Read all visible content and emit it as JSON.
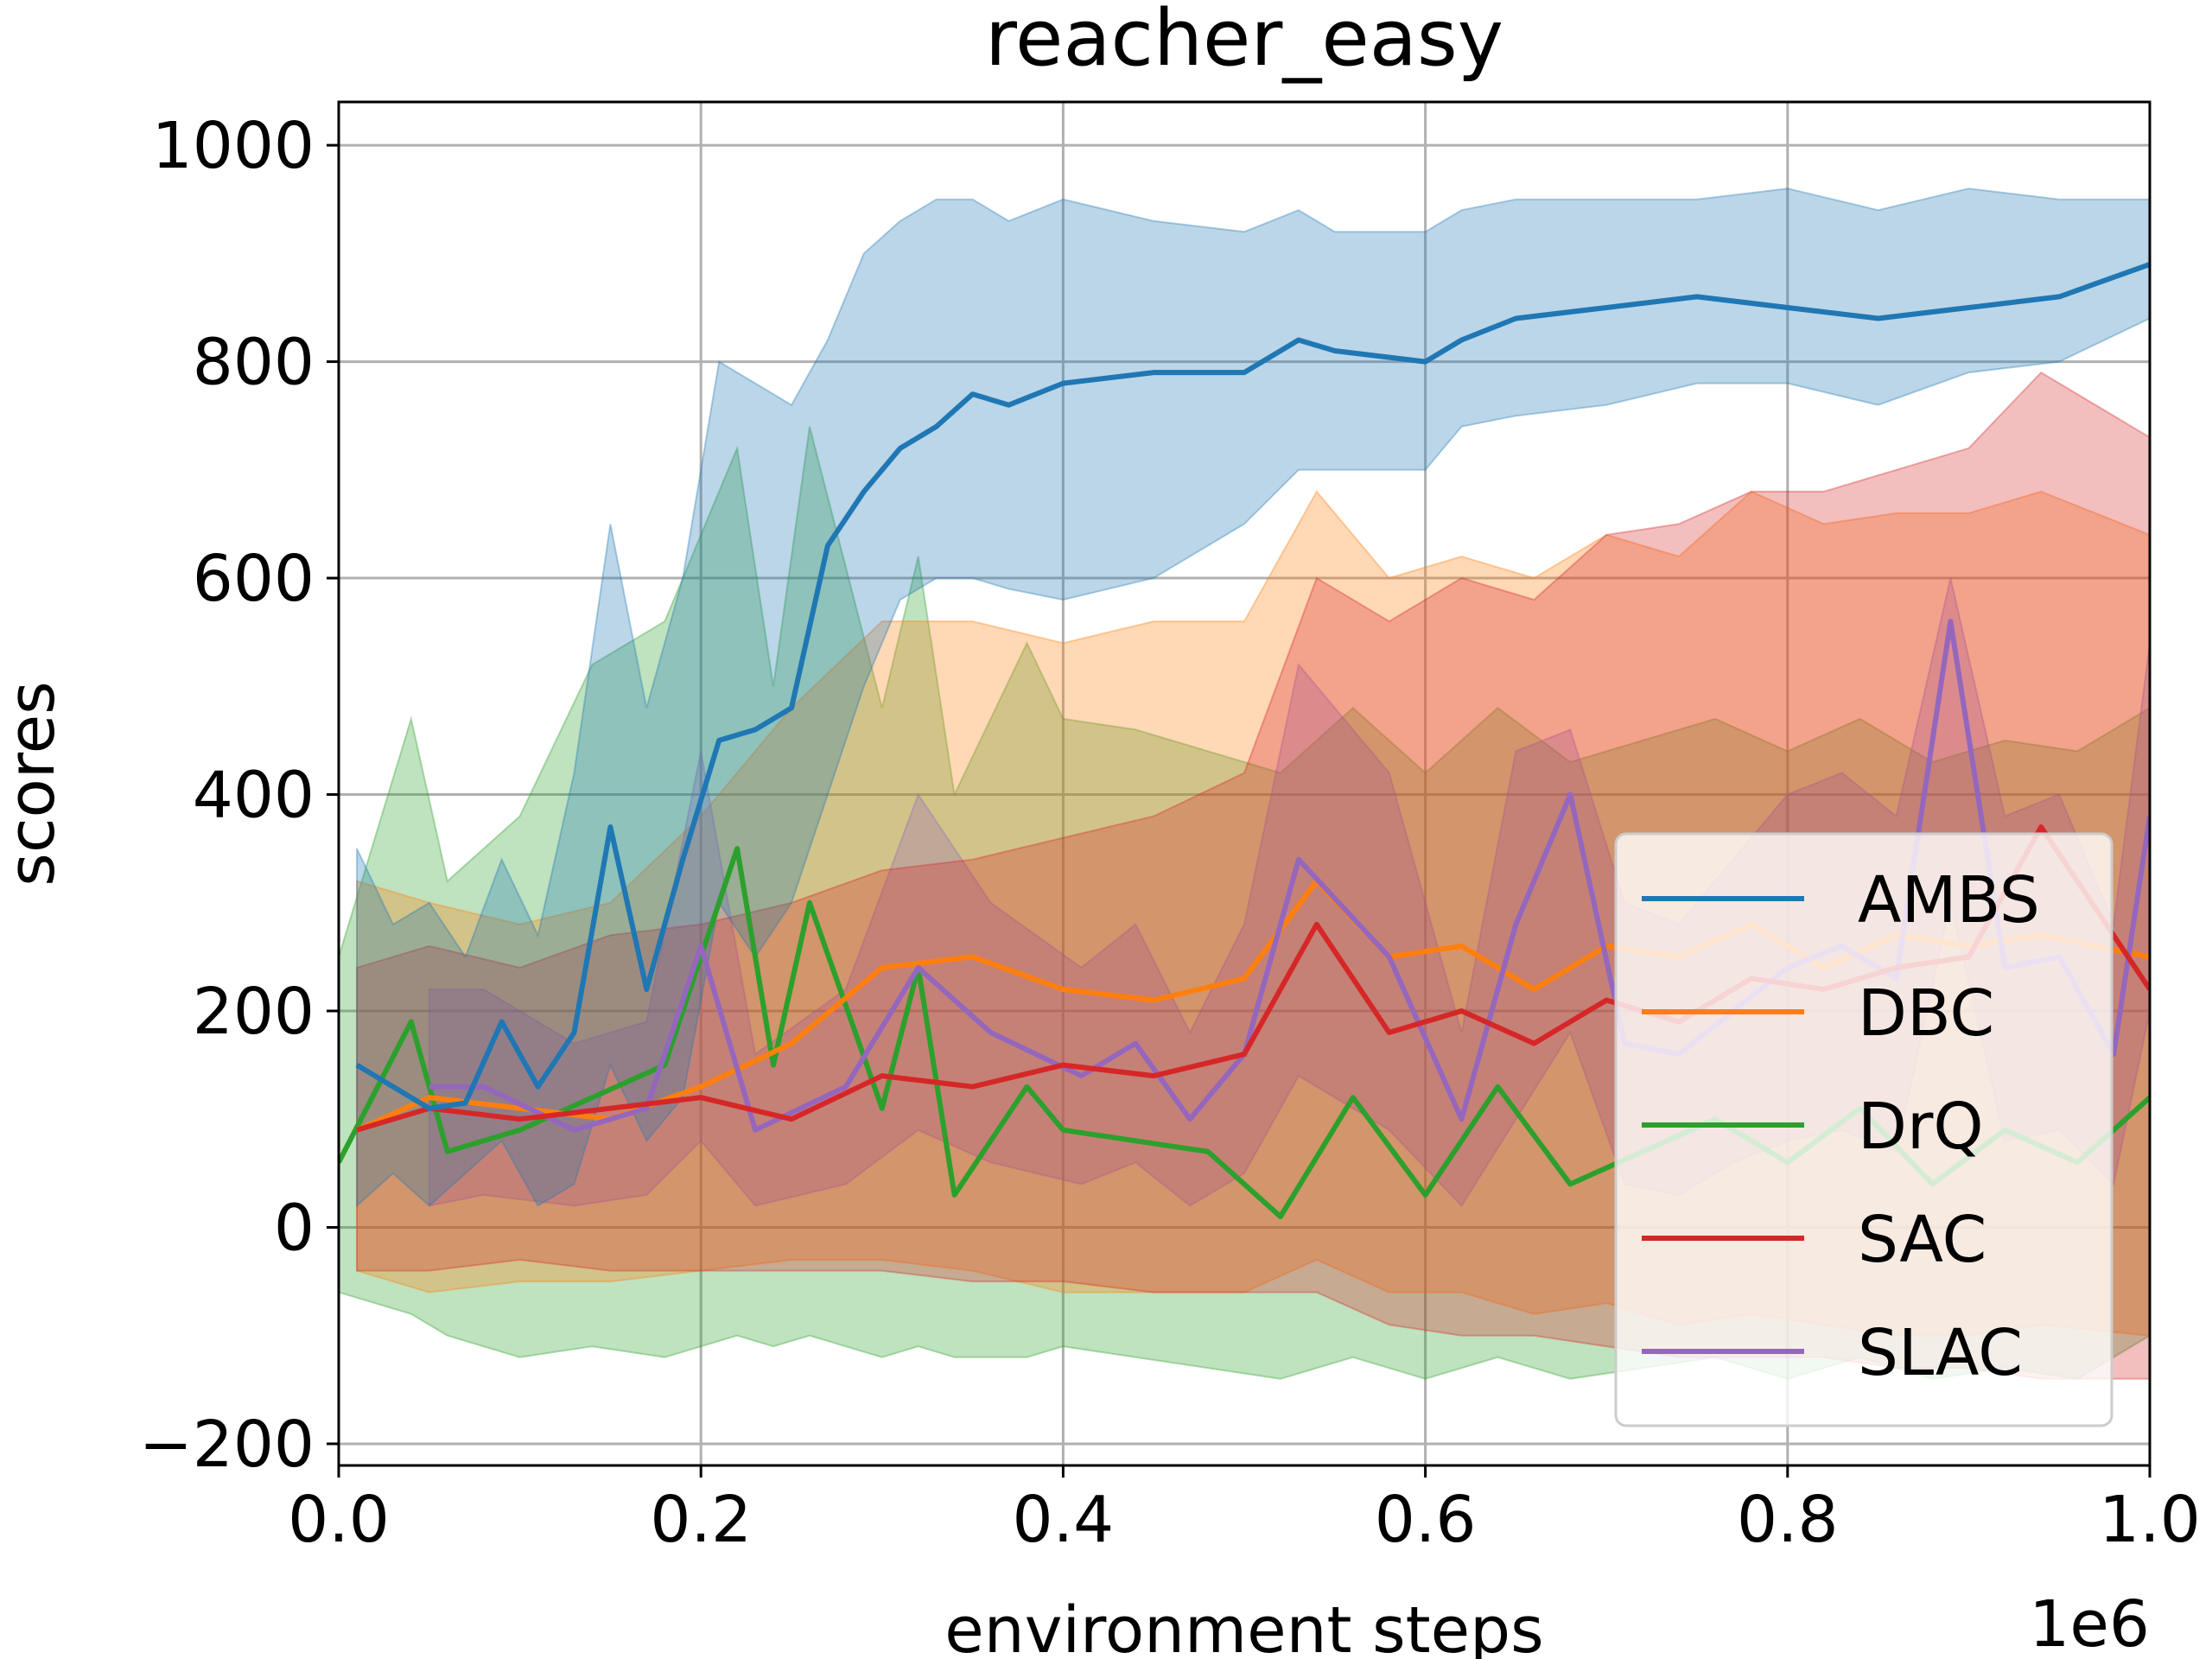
{
  "chart_data": {
    "type": "line",
    "title": "reacher_easy",
    "xlabel": "environment steps",
    "ylabel": "scores",
    "x_offset_label": "1e6",
    "xlim": [
      0.0,
      1.0
    ],
    "ylim": [
      -220,
      1040
    ],
    "x_ticks": [
      0.0,
      0.2,
      0.4,
      0.6,
      0.8,
      1.0
    ],
    "x_tick_labels": [
      "0.0",
      "0.2",
      "0.4",
      "0.6",
      "0.8",
      "1.0"
    ],
    "y_ticks": [
      -200,
      0,
      200,
      400,
      600,
      800,
      1000
    ],
    "y_tick_labels": [
      "−200",
      "0",
      "200",
      "400",
      "600",
      "800",
      "1000"
    ],
    "grid": true,
    "legend_position": "lower-right",
    "colors": {
      "AMBS": "#1f77b4",
      "DBC": "#ff7f0e",
      "DrQ": "#2ca02c",
      "SAC": "#d62728",
      "SLAC": "#9467bd"
    },
    "series": [
      {
        "name": "AMBS",
        "x": [
          0.01,
          0.03,
          0.05,
          0.07,
          0.09,
          0.11,
          0.13,
          0.15,
          0.17,
          0.19,
          0.21,
          0.23,
          0.25,
          0.27,
          0.29,
          0.31,
          0.33,
          0.35,
          0.37,
          0.4,
          0.45,
          0.5,
          0.53,
          0.55,
          0.6,
          0.62,
          0.65,
          0.7,
          0.75,
          0.8,
          0.85,
          0.9,
          0.95,
          1.0
        ],
        "y": [
          150,
          130,
          110,
          115,
          190,
          130,
          180,
          370,
          220,
          340,
          450,
          460,
          480,
          630,
          680,
          720,
          740,
          770,
          760,
          780,
          790,
          790,
          820,
          810,
          800,
          820,
          840,
          850,
          860,
          850,
          840,
          850,
          860,
          890
        ],
        "lower": [
          20,
          50,
          20,
          50,
          80,
          20,
          40,
          150,
          80,
          120,
          300,
          250,
          300,
          400,
          500,
          580,
          600,
          600,
          590,
          580,
          600,
          650,
          700,
          700,
          700,
          740,
          750,
          760,
          780,
          780,
          760,
          790,
          800,
          840
        ],
        "upper": [
          350,
          280,
          300,
          250,
          340,
          270,
          420,
          650,
          480,
          600,
          800,
          780,
          760,
          820,
          900,
          930,
          950,
          950,
          930,
          950,
          930,
          920,
          940,
          920,
          920,
          940,
          950,
          950,
          950,
          960,
          940,
          960,
          950,
          950
        ]
      },
      {
        "name": "DBC",
        "x": [
          0.01,
          0.05,
          0.1,
          0.15,
          0.2,
          0.25,
          0.3,
          0.35,
          0.4,
          0.45,
          0.5,
          0.54,
          0.58,
          0.62,
          0.66,
          0.7,
          0.74,
          0.78,
          0.82,
          0.86,
          0.9,
          0.94,
          1.0
        ],
        "y": [
          90,
          120,
          110,
          100,
          130,
          170,
          240,
          250,
          220,
          210,
          230,
          320,
          250,
          260,
          220,
          260,
          250,
          280,
          240,
          270,
          260,
          270,
          250
        ],
        "lower": [
          -40,
          -60,
          -50,
          -50,
          -40,
          -30,
          -30,
          -40,
          -60,
          -60,
          -60,
          -30,
          -60,
          -60,
          -80,
          -70,
          -90,
          -80,
          -90,
          -100,
          -100,
          -90,
          -100
        ],
        "upper": [
          320,
          300,
          280,
          300,
          380,
          480,
          560,
          560,
          540,
          560,
          560,
          680,
          600,
          620,
          600,
          640,
          620,
          680,
          650,
          660,
          660,
          680,
          640
        ]
      },
      {
        "name": "DrQ",
        "x": [
          0.0,
          0.04,
          0.06,
          0.1,
          0.14,
          0.18,
          0.22,
          0.24,
          0.26,
          0.3,
          0.32,
          0.34,
          0.38,
          0.4,
          0.44,
          0.48,
          0.52,
          0.56,
          0.6,
          0.64,
          0.68,
          0.72,
          0.76,
          0.8,
          0.84,
          0.88,
          0.92,
          0.96,
          1.0
        ],
        "y": [
          60,
          190,
          70,
          90,
          120,
          150,
          350,
          150,
          300,
          110,
          240,
          30,
          130,
          90,
          80,
          70,
          10,
          120,
          30,
          130,
          40,
          70,
          100,
          60,
          110,
          40,
          90,
          60,
          120
        ],
        "lower": [
          -60,
          -80,
          -100,
          -120,
          -110,
          -120,
          -100,
          -110,
          -100,
          -120,
          -110,
          -120,
          -120,
          -110,
          -120,
          -130,
          -140,
          -120,
          -140,
          -120,
          -140,
          -130,
          -120,
          -140,
          -120,
          -140,
          -130,
          -140,
          -100
        ],
        "upper": [
          250,
          470,
          320,
          380,
          520,
          560,
          720,
          500,
          740,
          480,
          620,
          400,
          540,
          470,
          460,
          440,
          420,
          480,
          420,
          480,
          430,
          450,
          470,
          440,
          470,
          430,
          450,
          440,
          480
        ]
      },
      {
        "name": "SAC",
        "x": [
          0.01,
          0.05,
          0.1,
          0.15,
          0.2,
          0.25,
          0.3,
          0.35,
          0.4,
          0.45,
          0.5,
          0.54,
          0.58,
          0.62,
          0.66,
          0.7,
          0.74,
          0.78,
          0.82,
          0.86,
          0.9,
          0.94,
          1.0
        ],
        "y": [
          90,
          110,
          100,
          110,
          120,
          100,
          140,
          130,
          150,
          140,
          160,
          280,
          180,
          200,
          170,
          210,
          190,
          230,
          220,
          240,
          250,
          370,
          220
        ],
        "lower": [
          -40,
          -40,
          -30,
          -40,
          -40,
          -40,
          -40,
          -50,
          -50,
          -60,
          -60,
          -60,
          -90,
          -100,
          -100,
          -110,
          -120,
          -120,
          -120,
          -130,
          -130,
          -140,
          -140
        ],
        "upper": [
          240,
          260,
          240,
          270,
          280,
          300,
          330,
          340,
          360,
          380,
          420,
          600,
          560,
          600,
          580,
          640,
          650,
          680,
          680,
          700,
          720,
          790,
          730
        ]
      },
      {
        "name": "SLAC",
        "x": [
          0.05,
          0.08,
          0.13,
          0.17,
          0.2,
          0.23,
          0.28,
          0.32,
          0.36,
          0.41,
          0.44,
          0.47,
          0.5,
          0.53,
          0.58,
          0.62,
          0.65,
          0.68,
          0.71,
          0.74,
          0.77,
          0.8,
          0.83,
          0.86,
          0.89,
          0.92,
          0.95,
          0.98,
          1.0
        ],
        "y": [
          130,
          130,
          90,
          110,
          260,
          90,
          130,
          240,
          180,
          140,
          170,
          100,
          160,
          340,
          250,
          100,
          280,
          400,
          170,
          160,
          200,
          240,
          260,
          230,
          560,
          240,
          250,
          160,
          380
        ],
        "lower": [
          20,
          30,
          20,
          30,
          80,
          20,
          40,
          90,
          60,
          40,
          60,
          20,
          50,
          140,
          90,
          20,
          100,
          180,
          40,
          30,
          60,
          80,
          90,
          70,
          300,
          80,
          90,
          40,
          200
        ],
        "upper": [
          220,
          220,
          170,
          190,
          440,
          160,
          220,
          400,
          300,
          240,
          280,
          180,
          280,
          520,
          420,
          180,
          440,
          460,
          300,
          280,
          340,
          400,
          420,
          380,
          600,
          380,
          400,
          280,
          540
        ]
      }
    ]
  }
}
